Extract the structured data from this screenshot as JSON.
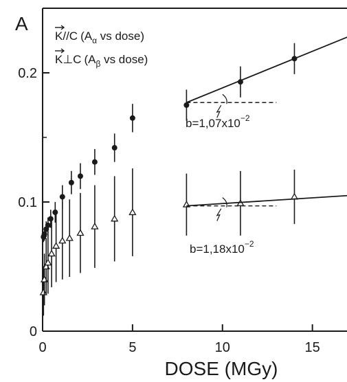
{
  "chart_data": {
    "type": "scatter",
    "ylabel": "A",
    "xlabel": "DOSE (MGy)",
    "xlim": [
      0,
      17
    ],
    "ylim": [
      0,
      0.25
    ],
    "x_ticks": [
      "0",
      "5",
      "10",
      "15"
    ],
    "y_ticks": [
      "0",
      "0.1",
      "0.2"
    ],
    "grid": false,
    "legend_position": "top-left",
    "legend": [
      {
        "vector": "K",
        "relation": "//C",
        "paren_open": "(A",
        "subscript": "α",
        "rest": " vs dose)"
      },
      {
        "vector": "K",
        "relation": "⊥C",
        "paren_open": "(A",
        "subscript": "β",
        "rest": " vs dose)"
      }
    ],
    "series": [
      {
        "marker": "filled-circle",
        "color": "#1a1a1a",
        "points": [
          {
            "x": 0.05,
            "y": 0.073,
            "err": 0.004
          },
          {
            "x": 0.1,
            "y": 0.075,
            "err": 0.005
          },
          {
            "x": 0.2,
            "y": 0.079,
            "err": 0.006
          },
          {
            "x": 0.3,
            "y": 0.082,
            "err": 0.006
          },
          {
            "x": 0.45,
            "y": 0.087,
            "err": 0.007
          },
          {
            "x": 0.7,
            "y": 0.092,
            "err": 0.008
          },
          {
            "x": 1.1,
            "y": 0.104,
            "err": 0.009
          },
          {
            "x": 1.6,
            "y": 0.115,
            "err": 0.009
          },
          {
            "x": 2.1,
            "y": 0.12,
            "err": 0.01
          },
          {
            "x": 2.9,
            "y": 0.131,
            "err": 0.01
          },
          {
            "x": 4.0,
            "y": 0.142,
            "err": 0.011
          },
          {
            "x": 5.0,
            "y": 0.165,
            "err": 0.011
          },
          {
            "x": 8.0,
            "y": 0.175,
            "err": 0.012
          },
          {
            "x": 11.0,
            "y": 0.193,
            "err": 0.012
          },
          {
            "x": 14.0,
            "y": 0.211,
            "err": 0.012
          }
        ],
        "fit": {
          "x0": 8.0,
          "y0": 0.177,
          "x1": 17.0,
          "y1": 0.228,
          "ref_y": 0.177
        },
        "annotation": {
          "base": "b=1,07x10",
          "exp": "−2"
        }
      },
      {
        "marker": "open-triangle",
        "color": "#1a1a1a",
        "points": [
          {
            "x": 0.05,
            "y": 0.03,
            "err": 0.018
          },
          {
            "x": 0.1,
            "y": 0.04,
            "err": 0.02
          },
          {
            "x": 0.2,
            "y": 0.05,
            "err": 0.022
          },
          {
            "x": 0.3,
            "y": 0.053,
            "err": 0.024
          },
          {
            "x": 0.5,
            "y": 0.06,
            "err": 0.026
          },
          {
            "x": 0.75,
            "y": 0.066,
            "err": 0.028
          },
          {
            "x": 1.1,
            "y": 0.07,
            "err": 0.03
          },
          {
            "x": 1.5,
            "y": 0.072,
            "err": 0.03
          },
          {
            "x": 2.1,
            "y": 0.076,
            "err": 0.031
          },
          {
            "x": 2.9,
            "y": 0.081,
            "err": 0.032
          },
          {
            "x": 4.0,
            "y": 0.087,
            "err": 0.033
          },
          {
            "x": 5.0,
            "y": 0.092,
            "err": 0.034
          },
          {
            "x": 8.0,
            "y": 0.098,
            "err": 0.024
          },
          {
            "x": 11.0,
            "y": 0.099,
            "err": 0.025
          },
          {
            "x": 14.0,
            "y": 0.104,
            "err": 0.021
          }
        ],
        "fit": {
          "x0": 8.0,
          "y0": 0.097,
          "x1": 17.0,
          "y1": 0.105,
          "ref_y": 0.097
        },
        "annotation": {
          "base": "b=1,18x10",
          "exp": "−2"
        }
      }
    ]
  }
}
